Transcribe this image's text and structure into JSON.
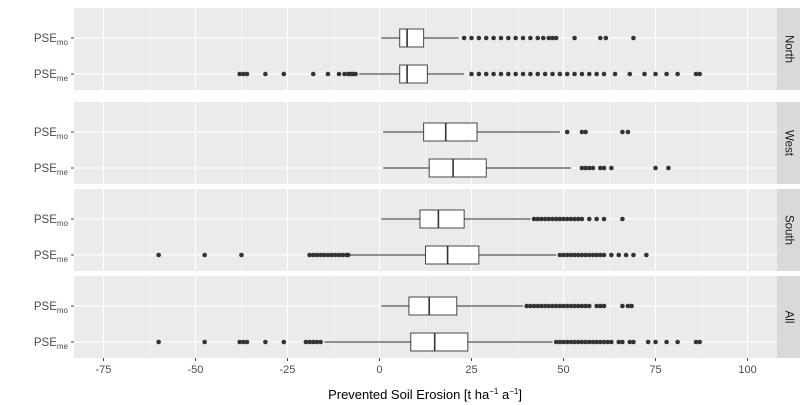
{
  "chart_data": {
    "type": "boxplot",
    "orientation": "horizontal",
    "xlabel": {
      "main": "Prevented Soil Erosion [t ha",
      "sup1": "−1",
      "mid": " a",
      "sup2": "−1",
      "end": "]"
    },
    "xlim": [
      -83,
      108
    ],
    "xticks": [
      -75,
      -50,
      -25,
      0,
      25,
      50,
      75,
      100
    ],
    "xtick_labels": [
      "-75",
      "-50",
      "-25",
      "0",
      "25",
      "50",
      "75",
      "100"
    ],
    "categories": [
      {
        "key": "mo",
        "base": "PSE",
        "sub": "mo"
      },
      {
        "key": "me",
        "base": "PSE",
        "sub": "me"
      }
    ],
    "facets": [
      {
        "label": "North",
        "boxes": [
          {
            "category": "mo",
            "whisker_low": 0.5,
            "q1": 5.5,
            "median": 7.5,
            "q3": 12,
            "whisker_high": 21.5,
            "outliers": [
              23,
              25,
              27,
              29,
              31,
              33,
              35,
              37,
              39,
              41,
              43,
              44.5,
              46,
              47,
              48,
              53,
              60,
              61.5,
              69
            ]
          },
          {
            "category": "me",
            "whisker_low": -5.5,
            "q1": 5.5,
            "median": 7.5,
            "q3": 13,
            "whisker_high": 23,
            "outliers": [
              -38,
              -37,
              -36,
              -31,
              -26,
              -18,
              -14,
              -11,
              -9.5,
              -8.5,
              -8,
              -7.5,
              -7,
              -6.5,
              25,
              27,
              29,
              31,
              33,
              35,
              37,
              39,
              41,
              43,
              45,
              47,
              49,
              51,
              53,
              55,
              57,
              59,
              61,
              64,
              68,
              72,
              75,
              78,
              81,
              86,
              87
            ]
          }
        ]
      },
      {
        "label": "West",
        "boxes": [
          {
            "category": "mo",
            "whisker_low": 1,
            "q1": 12,
            "median": 18,
            "q3": 26.5,
            "whisker_high": 49,
            "outliers": [
              51,
              55,
              56,
              66,
              67.5
            ]
          },
          {
            "category": "me",
            "whisker_low": 1,
            "q1": 13.5,
            "median": 20,
            "q3": 29,
            "whisker_high": 52,
            "outliers": [
              55,
              56,
              57,
              58,
              60,
              61,
              63,
              75,
              78.5
            ]
          }
        ]
      },
      {
        "label": "South",
        "boxes": [
          {
            "category": "mo",
            "whisker_low": 0.5,
            "q1": 11,
            "median": 16,
            "q3": 23,
            "whisker_high": 41,
            "outliers": [
              42,
              43,
              44,
              45,
              46,
              47,
              48,
              49,
              50,
              51,
              52,
              53,
              54,
              55,
              57,
              59,
              61,
              66
            ]
          },
          {
            "category": "me",
            "whisker_low": -19.5,
            "q1": 12.5,
            "median": 18.5,
            "q3": 27,
            "whisker_high": 48,
            "outliers": [
              -60,
              -47.5,
              -37.5,
              -19,
              -18,
              -17,
              -16,
              -15,
              -14,
              -13,
              -12,
              -11,
              -10,
              -9,
              -8.5,
              49,
              50,
              51,
              52,
              53,
              54,
              55,
              56,
              57,
              58,
              59,
              60,
              61,
              63,
              65,
              67,
              69,
              72.5
            ]
          }
        ]
      },
      {
        "label": "All",
        "boxes": [
          {
            "category": "mo",
            "whisker_low": 0.5,
            "q1": 8,
            "median": 13.5,
            "q3": 21,
            "whisker_high": 39,
            "outliers": [
              40,
              41,
              42,
              43,
              44,
              45,
              46,
              47,
              48,
              49,
              50,
              51,
              52,
              53,
              54,
              55,
              56,
              57,
              59,
              60,
              61,
              66,
              67.5,
              68.5
            ]
          },
          {
            "category": "me",
            "whisker_low": -15,
            "q1": 8.5,
            "median": 15,
            "q3": 24,
            "whisker_high": 47,
            "outliers": [
              -60,
              -47.5,
              -38,
              -37,
              -36,
              -31,
              -26,
              -20,
              -19,
              -18,
              -17,
              -16,
              48,
              49,
              50,
              51,
              52,
              53,
              54,
              55,
              56,
              57,
              58,
              59,
              60,
              61,
              62,
              63,
              65,
              66,
              68,
              69,
              73,
              75,
              78,
              81,
              86,
              87
            ]
          }
        ]
      }
    ],
    "grid": true,
    "legend": "none"
  },
  "colors": {
    "panel_bg": "#ebebeb",
    "grid_major": "#ffffff",
    "grid_minor": "#f5f5f5",
    "strip_bg": "#d9d9d9",
    "box_fill": "#ffffff",
    "line": "#333333",
    "point": "#333333",
    "tick": "#333333"
  }
}
